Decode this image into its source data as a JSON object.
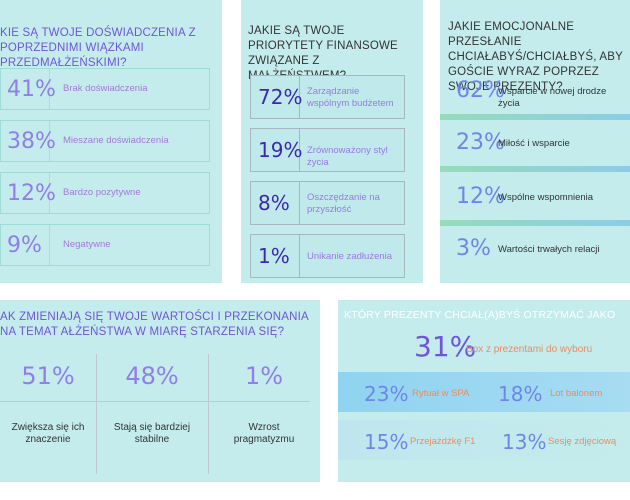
{
  "panel1": {
    "title": "KIE SĄ TWOJE DOŚWIADCZENIA Z POPRZEDNIMI WIĄZKAMI PRZEDMAŁŻEŃSKIMI?",
    "items": [
      {
        "pct": "41%",
        "label": "Brak doświadczenia"
      },
      {
        "pct": "38%",
        "label": "Mieszane doświadczenia"
      },
      {
        "pct": "12%",
        "label": "Bardzo pozytywne"
      },
      {
        "pct": "9%",
        "label": "Negatywne"
      }
    ]
  },
  "panel2": {
    "title": "JAKIE SĄ TWOJE PRIORYTETY FINANSOWE ZWIĄZANE Z MAŁŻEŃSTWEM?",
    "items": [
      {
        "pct": "72%",
        "label": "Zarządzanie wspólnym budżetem"
      },
      {
        "pct": "19%",
        "label": "Zrównoważony styl życia"
      },
      {
        "pct": "8%",
        "label": "Oszczędzanie na przyszłość"
      },
      {
        "pct": "1%",
        "label": "Unikanie zadłużenia"
      }
    ]
  },
  "panel3": {
    "title": "JAKIE EMOCJONALNE PRZESŁANIE CHCIAŁABYŚ/CHCIAŁBYŚ, ABY GOŚCIE WYRAZ POPRZEZ SWOJE PREZENTY?",
    "items": [
      {
        "pct": "62%",
        "label": "Wsparcie w nowej drodze życia"
      },
      {
        "pct": "23%",
        "label": "Miłość i wsparcie"
      },
      {
        "pct": "12%",
        "label": "Wspólne wspomnienia"
      },
      {
        "pct": "3%",
        "label": "Wartości trwałych relacji"
      }
    ]
  },
  "panel4": {
    "title": "AK ZMIENIAJĄ SIĘ TWOJE WARTOŚCI I PRZEKONANIA NA TEMAT AŁŻEŃSTWA W MIARĘ STARZENIA SIĘ?",
    "items": [
      {
        "pct": "51%",
        "label": "Zwiększa się ich znaczenie"
      },
      {
        "pct": "48%",
        "label": "Stają się bardziej stabilne"
      },
      {
        "pct": "1%",
        "label": "Wzrost pragmatyzmu"
      }
    ]
  },
  "panel5": {
    "title": "KTÓRY PREZENTY CHCIAŁ(A)BYŚ OTRZYMAĆ JAKO PREZENT ŚLUBN",
    "top": {
      "pct": "31%",
      "label": "Box z prezentami do wyboru"
    },
    "row2": [
      {
        "pct": "23%",
        "label": "Rytuał w SPA"
      },
      {
        "pct": "18%",
        "label": "Lot balonem"
      }
    ],
    "row3": [
      {
        "pct": "15%",
        "label": "Przejażdżkę F1"
      },
      {
        "pct": "13%",
        "label": "Sesję zdjęciową"
      }
    ]
  },
  "colors": {
    "panel_bg": "#c4ecec",
    "violet": "#6f55d8",
    "deep_violet": "#3c28b4",
    "blue": "#6f86e6",
    "orange": "#f08a5d",
    "band_blue": "#8fd3f0"
  }
}
